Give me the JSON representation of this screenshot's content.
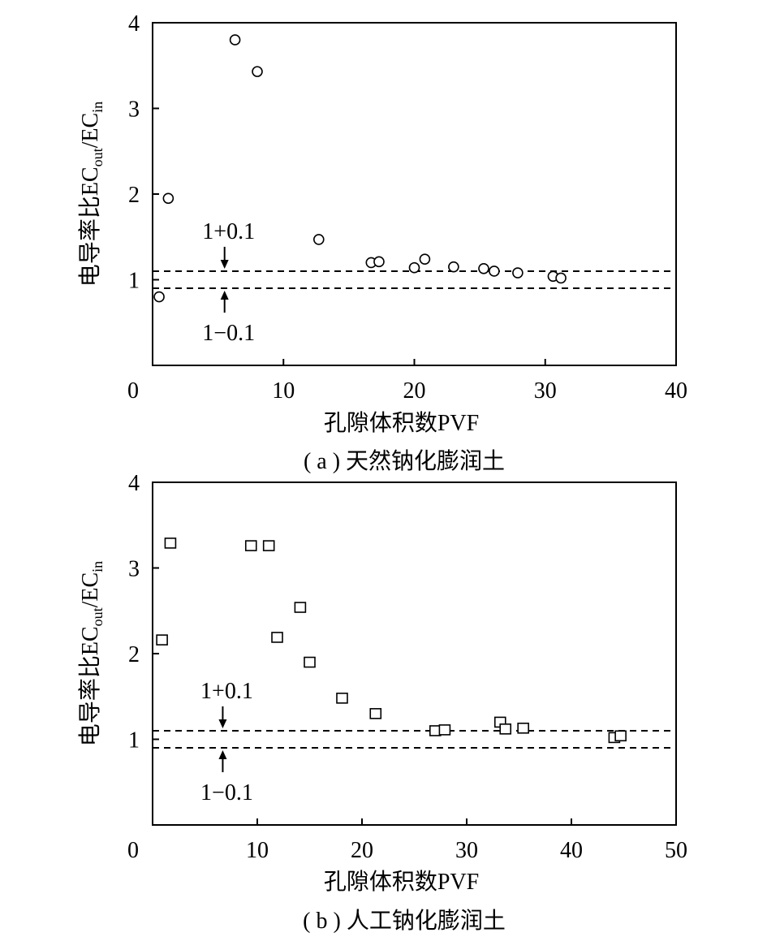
{
  "chart_data": [
    {
      "type": "scatter",
      "caption": "( a ) 天然钠化膨润土",
      "xlabel": "孔隙体积数PVF",
      "ylabel": {
        "main": "电导率比EC",
        "sub1": "out",
        "mid": "/EC",
        "sub2": "in"
      },
      "xlim": [
        0,
        40
      ],
      "ylim": [
        0,
        4
      ],
      "xticks": [
        0,
        10,
        20,
        30,
        40
      ],
      "yticks": [
        1,
        2,
        3,
        4
      ],
      "marker": "circle",
      "reference_lines": [
        1.1,
        0.9
      ],
      "annotations": {
        "upper": "1+0.1",
        "lower": "1−0.1",
        "arrow_x": 5.5
      },
      "series": [
        {
          "x": [
            0.5,
            1.2,
            6.3,
            8.0,
            12.7,
            16.7,
            17.3,
            20.0,
            20.8,
            23.0,
            25.3,
            26.1,
            27.9,
            30.6,
            31.2
          ],
          "y": [
            0.8,
            1.95,
            3.8,
            3.43,
            1.47,
            1.2,
            1.21,
            1.14,
            1.24,
            1.15,
            1.13,
            1.1,
            1.08,
            1.04,
            1.02
          ]
        }
      ]
    },
    {
      "type": "scatter",
      "caption": "( b ) 人工钠化膨润土",
      "xlabel": "孔隙体积数PVF",
      "ylabel": {
        "main": "电导率比EC",
        "sub1": "out",
        "mid": "/EC",
        "sub2": "in"
      },
      "xlim": [
        0,
        50
      ],
      "ylim": [
        0,
        4
      ],
      "xticks": [
        0,
        10,
        20,
        30,
        40,
        50
      ],
      "yticks": [
        1,
        2,
        3,
        4
      ],
      "marker": "square",
      "reference_lines": [
        1.1,
        0.9
      ],
      "annotations": {
        "upper": "1+0.1",
        "lower": "1−0.1",
        "arrow_x": 6.7
      },
      "series": [
        {
          "x": [
            0.9,
            1.7,
            9.4,
            11.1,
            11.9,
            14.1,
            15.0,
            18.1,
            21.3,
            27.0,
            27.9,
            33.2,
            33.7,
            35.4,
            44.1,
            44.7
          ],
          "y": [
            2.16,
            3.29,
            3.26,
            3.26,
            2.19,
            2.54,
            1.9,
            1.48,
            1.3,
            1.1,
            1.11,
            1.2,
            1.12,
            1.13,
            1.02,
            1.04
          ]
        }
      ]
    }
  ]
}
